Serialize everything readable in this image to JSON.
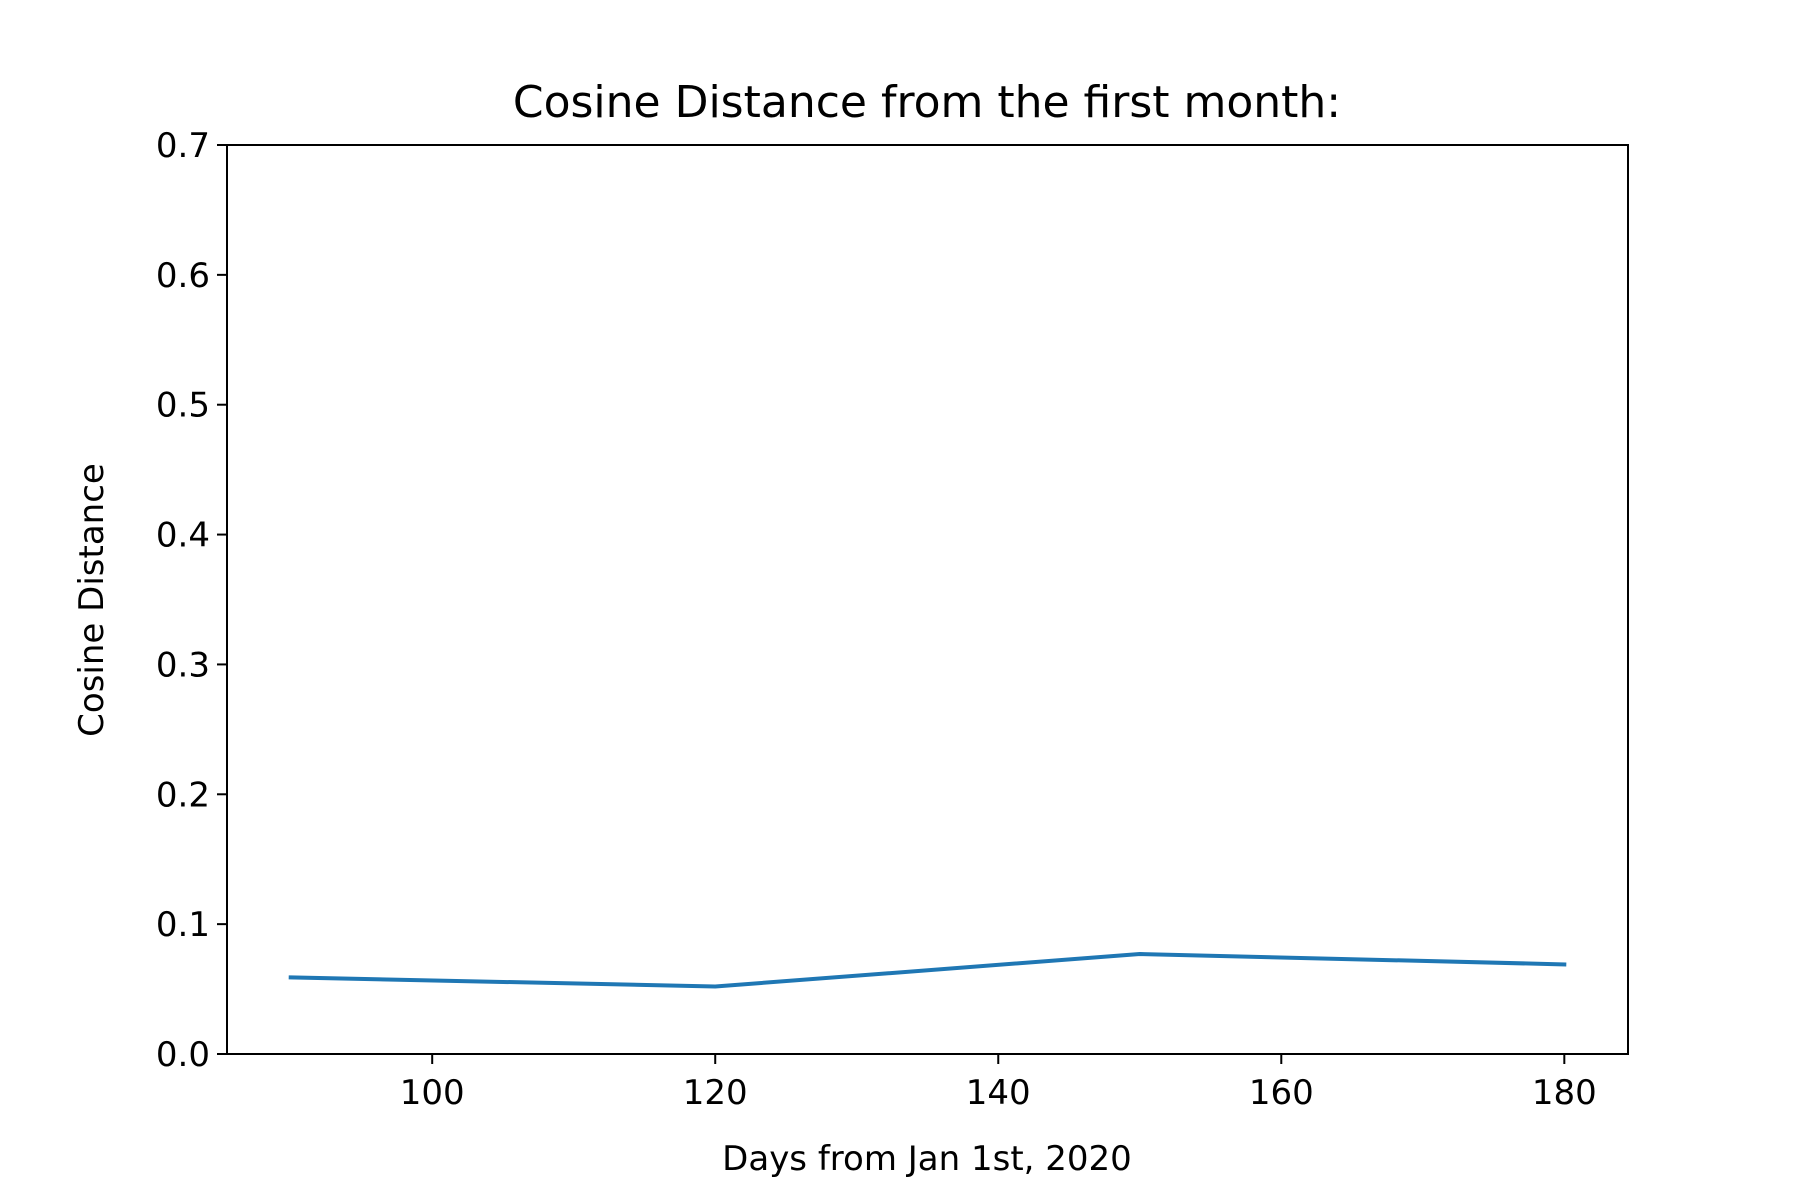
{
  "chart_data": {
    "type": "line",
    "title": "Cosine Distance from the first month:",
    "xlabel": "Days from Jan 1st, 2020",
    "ylabel": "Cosine Distance",
    "xlim": [
      85.5,
      184.5
    ],
    "ylim": [
      0,
      0.7
    ],
    "x_ticks": [
      100,
      120,
      140,
      160,
      180
    ],
    "y_ticks": [
      "0.0",
      "0.1",
      "0.2",
      "0.3",
      "0.4",
      "0.5",
      "0.6",
      "0.7"
    ],
    "grid": false,
    "series": [
      {
        "color": "#1f77b4",
        "x": [
          90,
          120,
          150,
          180
        ],
        "y": [
          0.059,
          0.052,
          0.077,
          0.069
        ]
      }
    ]
  }
}
